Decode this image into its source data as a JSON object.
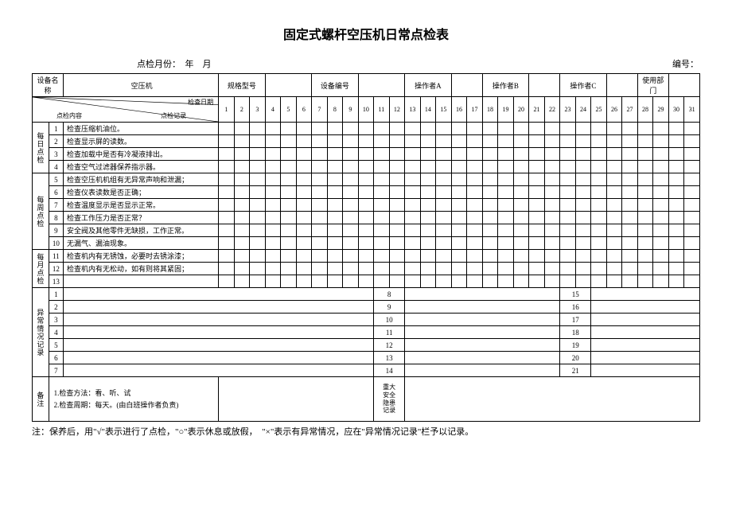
{
  "title": "固定式螺杆空压机日常点检表",
  "subheader_left": "点检月份：　年　月",
  "subheader_right": "编号：",
  "header_row1": {
    "device_name_label": "设备名称",
    "device_name_value": "空压机",
    "model_label": "规格型号",
    "device_no_label": "设备编号",
    "operator_a": "操作者A",
    "operator_b": "操作者B",
    "operator_c": "操作者C",
    "dept_label": "使用部门"
  },
  "diag": {
    "check_date": "检查日期",
    "check_content": "点检内容",
    "check_record": "点检记录"
  },
  "days": [
    "1",
    "2",
    "3",
    "4",
    "5",
    "6",
    "7",
    "8",
    "9",
    "10",
    "11",
    "12",
    "13",
    "14",
    "15",
    "16",
    "17",
    "18",
    "19",
    "20",
    "21",
    "22",
    "23",
    "24",
    "25",
    "26",
    "27",
    "28",
    "29",
    "30",
    "31"
  ],
  "groups": [
    {
      "label": "每日点检",
      "items": [
        {
          "n": "1",
          "text": "检查压缩机油位。"
        },
        {
          "n": "2",
          "text": "检查显示屏的读数。"
        },
        {
          "n": "3",
          "text": "检查加载中是否有冷凝液排出。"
        },
        {
          "n": "4",
          "text": "检查空气过滤器保养指示器。"
        }
      ]
    },
    {
      "label": "每周点检",
      "items": [
        {
          "n": "5",
          "text": "检查空压机机组有无异常声响和泄漏；"
        },
        {
          "n": "6",
          "text": "检查仪表读数是否正确；"
        },
        {
          "n": "7",
          "text": "检查温度显示是否显示正常。"
        },
        {
          "n": "8",
          "text": "检查工作压力是否正常？"
        },
        {
          "n": "9",
          "text": "安全阀及其他零件无缺损，工作正常。"
        },
        {
          "n": "10",
          "text": "无漏气、漏油现象。"
        }
      ]
    },
    {
      "label": "每月点检",
      "items": [
        {
          "n": "11",
          "text": "检查机内有无锈蚀，必要时去锈涂漆；"
        },
        {
          "n": "12",
          "text": "检查机内有无松动，如有则将其紧固；"
        },
        {
          "n": "13",
          "text": ""
        }
      ]
    }
  ],
  "abnormal_label": "异常情况记录",
  "abnormal_nums_1": [
    "1",
    "2",
    "3",
    "4",
    "5",
    "6",
    "7"
  ],
  "abnormal_nums_2": [
    "8",
    "9",
    "10",
    "11",
    "12",
    "13",
    "14"
  ],
  "abnormal_nums_3": [
    "15",
    "16",
    "17",
    "18",
    "19",
    "20",
    "21"
  ],
  "notes_label": "备注",
  "notes_line1": "1.检查方法：看、听、试",
  "notes_line2": "2.检查周期：每天。(由白班操作者负责)",
  "safety_label_1": "重大",
  "safety_label_2": "安全",
  "safety_label_3": "隐患",
  "safety_label_4": "记录",
  "footer_note": "注：保养后，用\"√\"表示进行了点检，\"○\"表示休息或放假，　\"×\"表示有异常情况，应在\"异常情况记录\"栏予以记录。"
}
